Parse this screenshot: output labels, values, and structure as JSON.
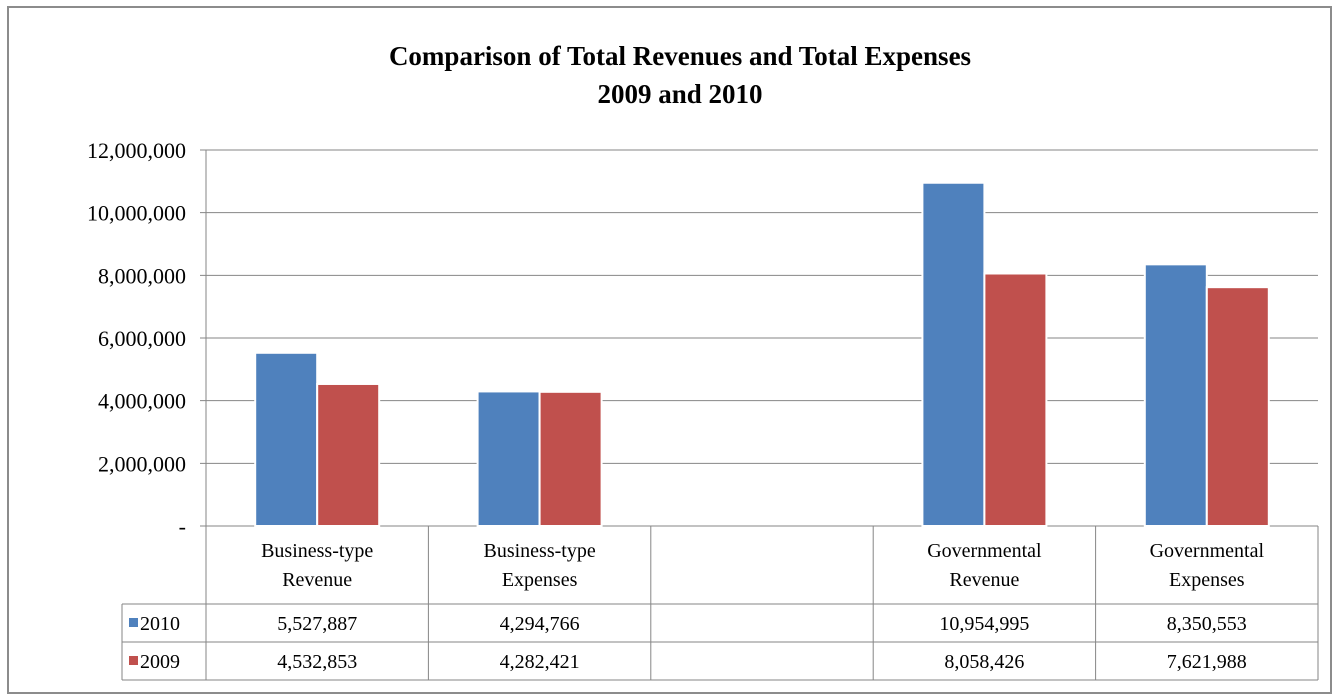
{
  "chart_data": {
    "type": "bar",
    "title": [
      "Comparison of Total Revenues and Total Expenses",
      "2009 and 2010"
    ],
    "categories": [
      [
        "Business-type",
        "Revenue"
      ],
      [
        "Business-type",
        "Expenses"
      ],
      [
        "",
        ""
      ],
      [
        "Governmental",
        "Revenue"
      ],
      [
        "Governmental",
        "Expenses"
      ]
    ],
    "series": [
      {
        "name": "2010",
        "color": "#4f81bd",
        "values": [
          5527887,
          4294766,
          null,
          10954995,
          8350553
        ],
        "labels": [
          "5,527,887",
          "4,294,766",
          "",
          "10,954,995",
          "8,350,553"
        ]
      },
      {
        "name": "2009",
        "color": "#c0504d",
        "values": [
          4532853,
          4282421,
          null,
          8058426,
          7621988
        ],
        "labels": [
          "4,532,853",
          "4,282,421",
          "",
          "8,058,426",
          "7,621,988"
        ]
      }
    ],
    "ylim": [
      0,
      12000000
    ],
    "yticks": [
      0,
      2000000,
      4000000,
      6000000,
      8000000,
      10000000,
      12000000
    ],
    "ytick_labels": [
      "-",
      "2,000,000",
      "4,000,000",
      "6,000,000",
      "8,000,000",
      "10,000,000",
      "12,000,000"
    ],
    "grid": true,
    "legend": "data-table"
  }
}
